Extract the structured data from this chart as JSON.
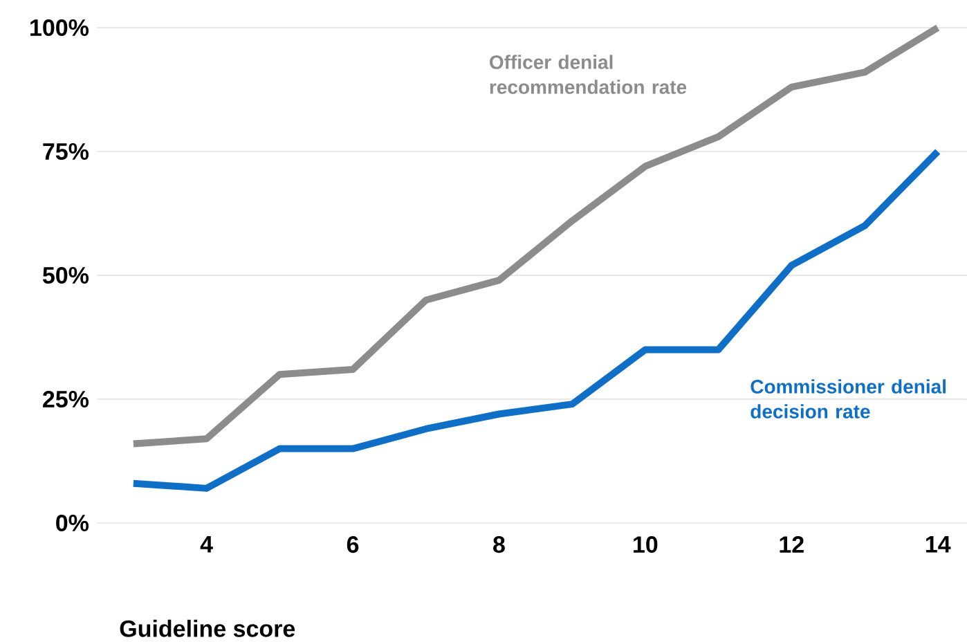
{
  "chart_data": {
    "type": "line",
    "xlabel": "Guideline score",
    "x": [
      3,
      4,
      5,
      6,
      7,
      8,
      9,
      10,
      11,
      12,
      13,
      14
    ],
    "series": [
      {
        "name": "Officer denial recommendation rate",
        "color": "#8c8c8c",
        "values": [
          16,
          17,
          30,
          31,
          45,
          49,
          61,
          72,
          78,
          88,
          91,
          100
        ]
      },
      {
        "name": "Commissioner denial decision rate",
        "color": "#0f6fc6",
        "values": [
          8,
          7,
          15,
          15,
          19,
          22,
          24,
          35,
          35,
          52,
          60,
          75
        ]
      }
    ],
    "xlim": [
      2.5,
      14.4
    ],
    "ylim": [
      0,
      100
    ],
    "xticks": [
      4,
      6,
      8,
      10,
      12,
      14
    ],
    "yticks": [
      {
        "value": 0,
        "label": "0%"
      },
      {
        "value": 25,
        "label": "25%"
      },
      {
        "value": 50,
        "label": "50%"
      },
      {
        "value": 75,
        "label": "75%"
      },
      {
        "value": 100,
        "label": "100%"
      }
    ],
    "grid": "y",
    "marker": "none",
    "line_style": "solid"
  }
}
